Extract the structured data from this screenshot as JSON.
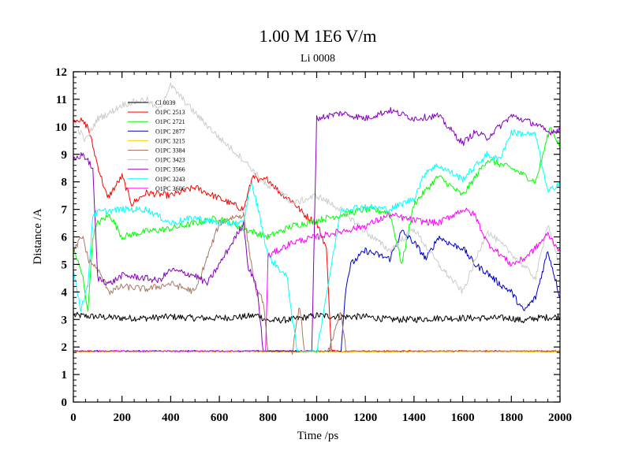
{
  "chart_data": {
    "type": "line",
    "title": "1.00 M 1E6 V/m",
    "subtitle": "Li 0008",
    "xlabel": "Time /ps",
    "ylabel": "Distance /A",
    "xlim": [
      0,
      2000
    ],
    "ylim": [
      0,
      12
    ],
    "xticks": [
      "0",
      "200",
      "400",
      "600",
      "800",
      "1000",
      "1200",
      "1400",
      "1600",
      "1800",
      "2000"
    ],
    "yticks": [
      "0",
      "1",
      "2",
      "3",
      "4",
      "5",
      "6",
      "7",
      "8",
      "9",
      "10",
      "11",
      "12"
    ],
    "legend_position": "top-left",
    "series": [
      {
        "name": "Cl 0039",
        "color": "#000000",
        "x": [
          0,
          100,
          200,
          300,
          400,
          500,
          600,
          700,
          760,
          800,
          900,
          1000,
          1100,
          1200,
          1300,
          1400,
          1500,
          1600,
          1700,
          1800,
          1850,
          1900,
          2000
        ],
        "y": [
          3.15,
          3.1,
          3.05,
          3.05,
          3.1,
          3.05,
          3.05,
          3.1,
          3.15,
          2.95,
          3.0,
          3.15,
          3.1,
          3.1,
          3.0,
          3.0,
          3.05,
          3.05,
          3.05,
          3.05,
          2.95,
          3.05,
          3.1
        ]
      },
      {
        "name": "O1PC 2513",
        "color": "#ff0000",
        "x": [
          0,
          20,
          60,
          100,
          140,
          200,
          240,
          300,
          400,
          500,
          600,
          700,
          740,
          760,
          800,
          850,
          900,
          950,
          1000,
          1040,
          1060,
          1080,
          1090,
          2000
        ],
        "y": [
          10.2,
          10.3,
          10.0,
          8.6,
          7.4,
          8.2,
          7.2,
          7.6,
          7.5,
          7.8,
          7.4,
          7.0,
          8.3,
          8.0,
          8.1,
          7.6,
          7.3,
          6.8,
          6.5,
          5.6,
          1.9,
          1.85,
          1.85,
          1.85
        ]
      },
      {
        "name": "O1PC 2721",
        "color": "#00ff00",
        "x": [
          0,
          40,
          60,
          80,
          100,
          150,
          200,
          300,
          400,
          500,
          600,
          700,
          800,
          900,
          1000,
          1100,
          1200,
          1300,
          1350,
          1400,
          1500,
          1600,
          1700,
          1800,
          1900,
          1960,
          2000
        ],
        "y": [
          5.6,
          4.5,
          3.3,
          6.0,
          6.5,
          6.8,
          6.0,
          6.2,
          6.3,
          6.5,
          6.7,
          6.3,
          6.0,
          6.4,
          6.6,
          6.8,
          7.0,
          6.9,
          5.0,
          7.2,
          8.2,
          7.5,
          8.8,
          8.5,
          8.0,
          10.0,
          9.3
        ]
      },
      {
        "name": "O1PC 2877",
        "color": "#0000cc",
        "x": [
          0,
          1100,
          1120,
          1140,
          1200,
          1300,
          1350,
          1400,
          1450,
          1500,
          1560,
          1600,
          1650,
          1700,
          1750,
          1800,
          1850,
          1900,
          1950,
          1980,
          2000
        ],
        "y": [
          1.85,
          1.85,
          4.2,
          5.0,
          5.5,
          5.2,
          6.2,
          5.8,
          5.2,
          6.0,
          5.7,
          5.6,
          5.0,
          4.7,
          4.3,
          4.0,
          3.3,
          3.8,
          5.5,
          4.5,
          3.8
        ]
      },
      {
        "name": "O1PC 3215",
        "color": "#ffcc00",
        "x": [
          0,
          400,
          800,
          1200,
          1600,
          2000
        ],
        "y": [
          1.82,
          1.85,
          1.83,
          1.82,
          1.84,
          1.82
        ]
      },
      {
        "name": "O1PC 3384",
        "color": "#aa7766",
        "x": [
          0,
          20,
          40,
          60,
          100,
          150,
          200,
          300,
          400,
          500,
          600,
          650,
          700,
          750,
          780,
          800,
          850,
          900,
          930,
          950,
          1000,
          1050,
          1100,
          1120,
          2000
        ],
        "y": [
          5.4,
          5.8,
          6.0,
          5.2,
          4.8,
          4.0,
          4.2,
          4.1,
          4.3,
          4.0,
          6.5,
          6.7,
          6.8,
          4.0,
          3.7,
          1.85,
          1.85,
          1.85,
          3.5,
          1.85,
          1.85,
          1.85,
          3.3,
          1.85,
          1.85
        ]
      },
      {
        "name": "O1PC 3423",
        "color": "#cccccc",
        "x": [
          0,
          50,
          100,
          150,
          200,
          300,
          350,
          400,
          500,
          600,
          700,
          760,
          800,
          850,
          900,
          1000,
          1100,
          1200,
          1300,
          1400,
          1500,
          1600,
          1700,
          1800,
          1900,
          1950,
          2000
        ],
        "y": [
          10.2,
          9.5,
          10.3,
          10.5,
          10.8,
          11.0,
          10.6,
          11.5,
          10.5,
          9.6,
          8.8,
          8.2,
          7.8,
          7.7,
          7.2,
          7.5,
          7.0,
          6.2,
          5.5,
          6.3,
          5.0,
          4.0,
          6.2,
          5.4,
          4.5,
          6.5,
          4.8
        ]
      },
      {
        "name": "O1PC 3566",
        "color": "#8800bb",
        "x": [
          0,
          40,
          80,
          100,
          150,
          200,
          300,
          350,
          400,
          500,
          550,
          600,
          700,
          720,
          740,
          760,
          780,
          800,
          900,
          980,
          1000,
          1100,
          1200,
          1300,
          1400,
          1500,
          1600,
          1650,
          1700,
          1800,
          1900,
          1950,
          2000
        ],
        "y": [
          8.8,
          9.0,
          8.5,
          4.5,
          4.3,
          4.6,
          4.5,
          4.4,
          4.8,
          4.6,
          4.3,
          5.0,
          6.5,
          4.8,
          4.6,
          3.8,
          1.85,
          1.85,
          1.85,
          1.85,
          10.3,
          10.5,
          10.3,
          10.6,
          10.3,
          10.4,
          9.4,
          9.8,
          9.6,
          10.4,
          10.1,
          9.8,
          9.9
        ]
      },
      {
        "name": "O1PC 3243",
        "color": "#00ffff",
        "x": [
          0,
          30,
          60,
          80,
          100,
          200,
          300,
          400,
          500,
          600,
          700,
          730,
          760,
          800,
          880,
          900,
          920,
          1000,
          1100,
          1200,
          1300,
          1400,
          1450,
          1500,
          1600,
          1700,
          1750,
          1800,
          1900,
          1950,
          2000
        ],
        "y": [
          4.8,
          3.4,
          4.2,
          6.8,
          6.9,
          7.0,
          7.0,
          6.5,
          6.7,
          6.5,
          6.5,
          8.0,
          7.0,
          5.3,
          4.5,
          3.0,
          1.85,
          1.85,
          7.0,
          7.1,
          7.0,
          7.4,
          8.4,
          8.6,
          8.1,
          9.0,
          8.8,
          9.8,
          9.7,
          7.6,
          8.0
        ]
      },
      {
        "name": "O1PC 3606",
        "color": "#ff00ff",
        "x": [
          0,
          780,
          790,
          800,
          900,
          1000,
          1100,
          1200,
          1300,
          1400,
          1500,
          1600,
          1650,
          1700,
          1800,
          1850,
          1900,
          1950,
          2000
        ],
        "y": [
          1.85,
          1.85,
          1.85,
          5.3,
          5.8,
          6.0,
          6.2,
          6.4,
          6.8,
          6.6,
          6.5,
          7.0,
          6.8,
          5.8,
          5.0,
          5.2,
          5.6,
          6.1,
          5.5
        ]
      }
    ]
  }
}
